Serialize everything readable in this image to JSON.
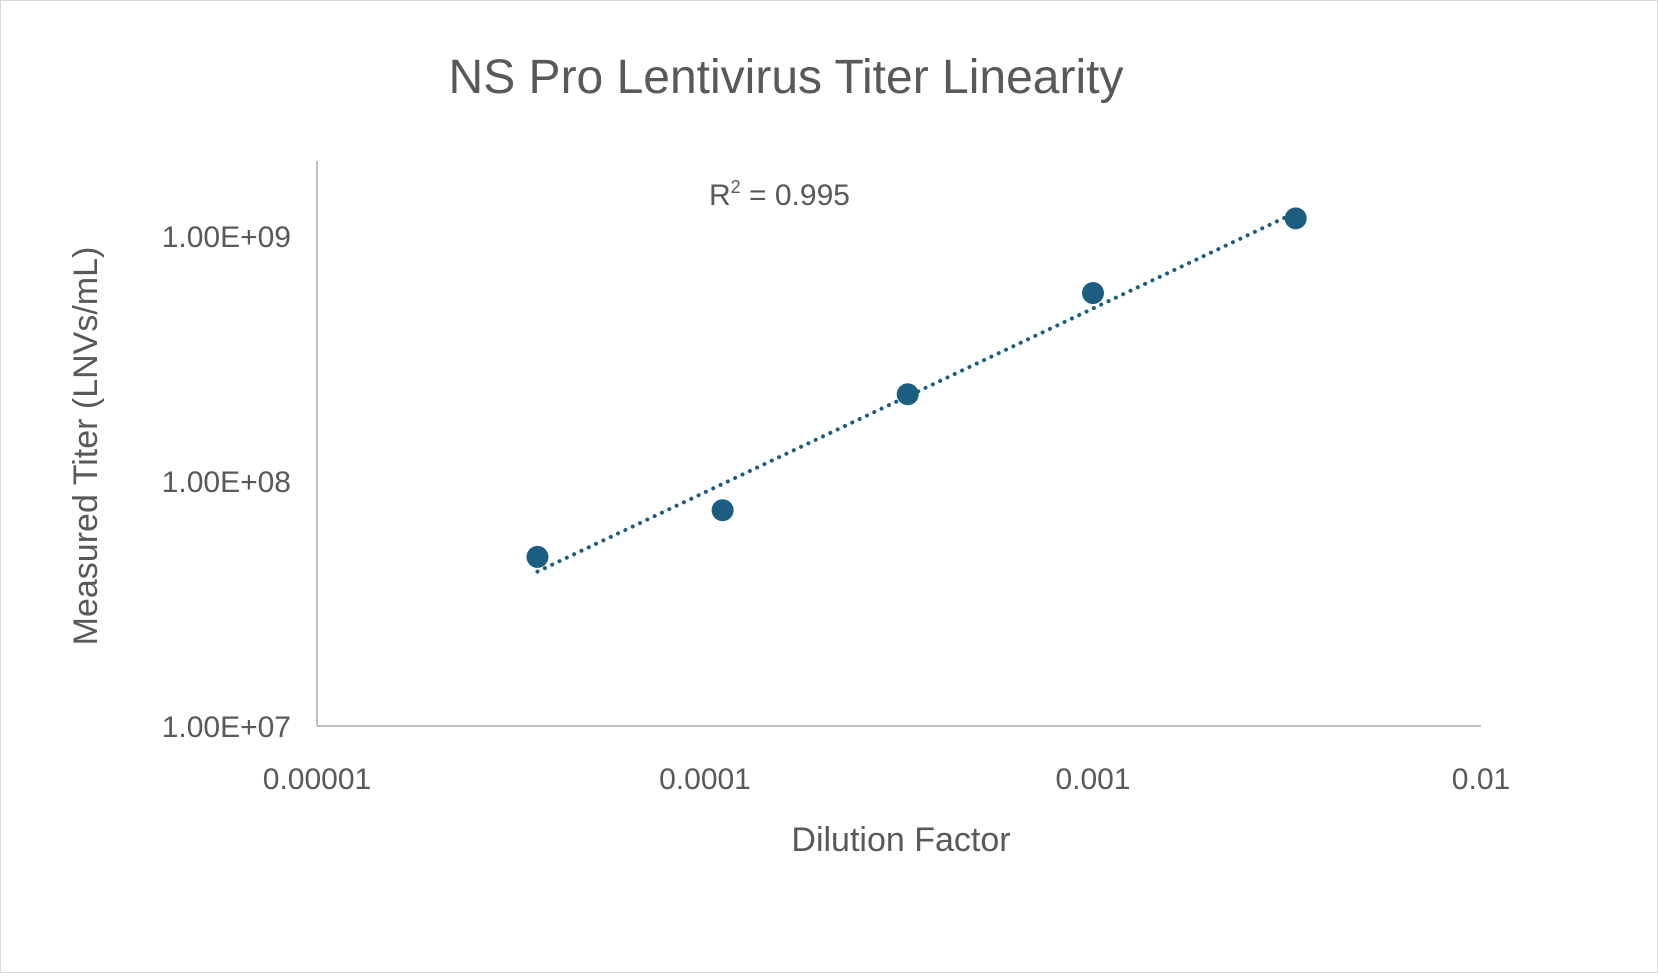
{
  "chart_data": {
    "type": "scatter",
    "title": "NS Pro Lentivirus Titer Linearity",
    "xlabel": "Dilution Factor",
    "ylabel": "Measured Titer (LNVs/mL)",
    "x_scale": "log",
    "y_scale": "log",
    "xlim": [
      1e-05,
      0.01
    ],
    "ylim": [
      10000000,
      2000000000
    ],
    "x_ticks": [
      "0.00001",
      "0.0001",
      "0.001",
      "0.01"
    ],
    "y_ticks": [
      "1.00E+07",
      "1.00E+08",
      "1.00E+09"
    ],
    "grid": false,
    "legend": "none",
    "series": [
      {
        "x": [
          3.7e-05,
          0.000111,
          0.000333,
          0.001,
          0.00333
        ],
        "y": [
          49000000,
          76000000,
          226000000,
          585000000,
          1180000000
        ],
        "color": "#1b5e82",
        "trendline": "power, dotted"
      }
    ],
    "annotation": {
      "r2_label": "R",
      "r2_sup": "2",
      "r2_value": " = 0.995"
    }
  }
}
